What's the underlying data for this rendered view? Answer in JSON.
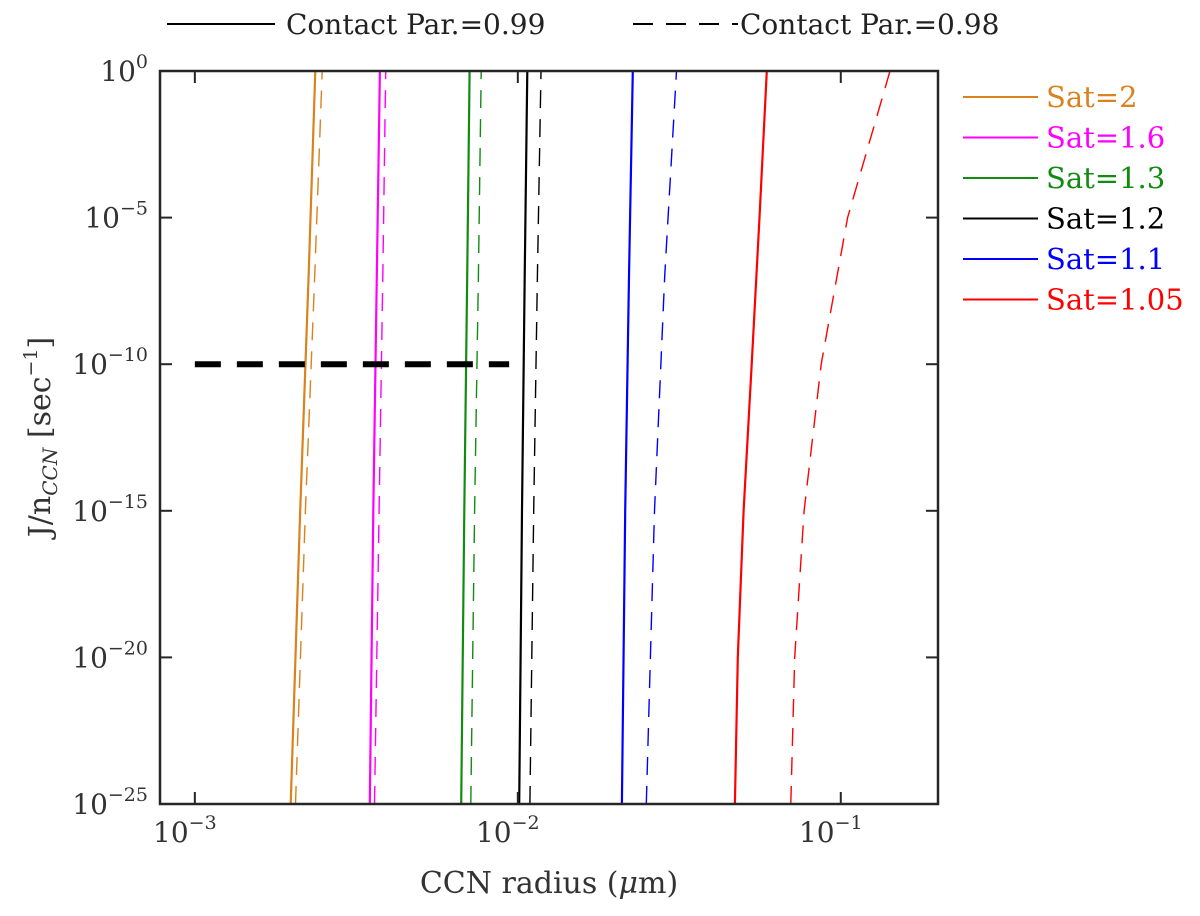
{
  "chart_data": {
    "type": "line",
    "xlabel_prefix": "CCN radius (",
    "xlabel_mu": "μ",
    "xlabel_suffix": "m)",
    "ylabel_prefix": "J/n",
    "ylabel_sub": "CCN",
    "ylabel_bracket": " [sec",
    "ylabel_sup": "−1",
    "ylabel_close": "]",
    "x_scale": "log",
    "y_scale": "log",
    "xlim": [
      0.00078,
      0.2
    ],
    "ylim": [
      1e-25,
      1
    ],
    "x_ticks": [
      {
        "value": 0.001,
        "base": "10",
        "exp": "−3"
      },
      {
        "value": 0.01,
        "base": "10",
        "exp": "−2"
      },
      {
        "value": 0.1,
        "base": "10",
        "exp": "−1"
      }
    ],
    "y_ticks": [
      {
        "value": 1,
        "base": "10",
        "exp": "0"
      },
      {
        "value": 1e-05,
        "base": "10",
        "exp": "−5"
      },
      {
        "value": 1e-10,
        "base": "10",
        "exp": "−10"
      },
      {
        "value": 1e-15,
        "base": "10",
        "exp": "−15"
      },
      {
        "value": 1e-20,
        "base": "10",
        "exp": "−20"
      },
      {
        "value": 1e-25,
        "base": "10",
        "exp": "−25"
      }
    ],
    "style_legend": [
      {
        "label": "Contact Par.=0.99",
        "dash": "solid"
      },
      {
        "label": "Contact Par.=0.98",
        "dash": "dashed"
      }
    ],
    "series": [
      {
        "name": "Sat=2",
        "color": "#d9821e",
        "solid": [
          [
            0.00198,
            1e-25
          ],
          [
            0.00212,
            1e-15
          ],
          [
            0.00225,
            1e-07
          ],
          [
            0.00236,
            1
          ]
        ],
        "dashed": [
          [
            0.00205,
            1e-25
          ],
          [
            0.0022,
            1e-15
          ],
          [
            0.00235,
            1e-07
          ],
          [
            0.00248,
            1
          ]
        ]
      },
      {
        "name": "Sat=1.6",
        "color": "#ff00ff",
        "solid": [
          [
            0.00348,
            1e-25
          ],
          [
            0.00357,
            1e-15
          ],
          [
            0.00366,
            1e-07
          ],
          [
            0.00374,
            1
          ]
        ],
        "dashed": [
          [
            0.0036,
            1e-25
          ],
          [
            0.00372,
            1e-15
          ],
          [
            0.00382,
            1e-07
          ],
          [
            0.0039,
            1
          ]
        ]
      },
      {
        "name": "Sat=1.3",
        "color": "#118c11",
        "solid": [
          [
            0.00668,
            1e-25
          ],
          [
            0.00683,
            1e-15
          ],
          [
            0.00697,
            1e-07
          ],
          [
            0.00709,
            1
          ]
        ],
        "dashed": [
          [
            0.00715,
            1e-25
          ],
          [
            0.00735,
            1e-15
          ],
          [
            0.00755,
            1e-07
          ],
          [
            0.0077,
            1
          ]
        ]
      },
      {
        "name": "Sat=1.2",
        "color": "#000000",
        "solid": [
          [
            0.0101,
            1e-25
          ],
          [
            0.0103,
            1e-15
          ],
          [
            0.0105,
            1e-07
          ],
          [
            0.0107,
            1
          ]
        ],
        "dashed": [
          [
            0.0109,
            1e-25
          ],
          [
            0.0112,
            1e-15
          ],
          [
            0.0115,
            1e-07
          ],
          [
            0.0118,
            1
          ]
        ]
      },
      {
        "name": "Sat=1.1",
        "color": "#0000ff",
        "solid": [
          [
            0.021,
            1e-25
          ],
          [
            0.0215,
            1e-15
          ],
          [
            0.0221,
            1e-07
          ],
          [
            0.0227,
            1
          ]
        ],
        "dashed": [
          [
            0.025,
            1e-25
          ],
          [
            0.0265,
            1e-15
          ],
          [
            0.0285,
            1e-07
          ],
          [
            0.031,
            1
          ]
        ]
      },
      {
        "name": "Sat=1.05",
        "color": "#ff0000",
        "solid": [
          [
            0.047,
            1e-25
          ],
          [
            0.048,
            1e-20
          ],
          [
            0.05,
            1e-15
          ],
          [
            0.053,
            1e-10
          ],
          [
            0.056,
            1e-05
          ],
          [
            0.059,
            1
          ]
        ],
        "dashed": [
          [
            0.07,
            1e-25
          ],
          [
            0.072,
            1e-20
          ],
          [
            0.077,
            1e-15
          ],
          [
            0.087,
            1e-10
          ],
          [
            0.105,
            1e-05
          ],
          [
            0.142,
            1
          ]
        ]
      }
    ],
    "reference_line": {
      "x": [
        0.001,
        0.0094
      ],
      "y": 1e-10,
      "style": "thick-dashed",
      "color": "#000000"
    }
  }
}
